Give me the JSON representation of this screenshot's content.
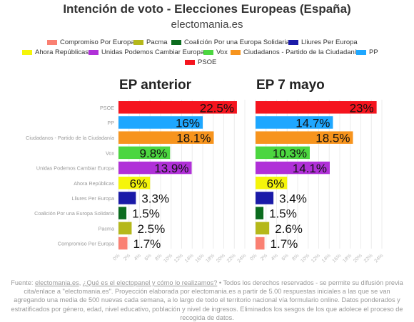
{
  "title": "Intención de voto - Elecciones Europeas (España)",
  "subtitle": "electomania.es",
  "legend": [
    {
      "label": "Compromiso Por Europa",
      "color": "#fa8072"
    },
    {
      "label": "Pacma",
      "color": "#b5b81a"
    },
    {
      "label": "Coalición Por una Europa Solidaria",
      "color": "#0b6b1e"
    },
    {
      "label": "Lliures Per Europa",
      "color": "#1a1aa8"
    },
    {
      "label": "Ahora Repúblicas",
      "color": "#f5f50a"
    },
    {
      "label": "Unidas Podemos Cambiar Europa",
      "color": "#b030d8"
    },
    {
      "label": "Vox",
      "color": "#4cd640"
    },
    {
      "label": "Ciudadanos - Partido de la Ciudadanía",
      "color": "#f7941d"
    },
    {
      "label": "PP",
      "color": "#1ea7ff"
    },
    {
      "label": "PSOE",
      "color": "#f5141e"
    }
  ],
  "chart_data": [
    {
      "type": "bar",
      "orientation": "horizontal",
      "title": "EP anterior",
      "categories": [
        "PSOE",
        "PP",
        "Ciudadanos - Partido de la Ciudadanía",
        "Vox",
        "Unidas Podemos Cambiar Europa",
        "Ahora Repúblicas",
        "Lliures Per Europa",
        "Coalición Por una Europa Solidaria",
        "Pacma",
        "Compromiso Por Europa"
      ],
      "values": [
        22.5,
        16,
        18.1,
        9.8,
        13.9,
        6,
        3.3,
        1.5,
        2.5,
        1.7
      ],
      "value_labels": [
        "22.5%",
        "16%",
        "18.1%",
        "9.8%",
        "13.9%",
        "6%",
        "3.3%",
        "1.5%",
        "2.5%",
        "1.7%"
      ],
      "xlim": [
        0,
        24
      ],
      "ticks": [
        "0%",
        "2%",
        "4%",
        "6%",
        "8%",
        "10%",
        "12%",
        "14%",
        "16%",
        "18%",
        "20%",
        "22%",
        "24%"
      ]
    },
    {
      "type": "bar",
      "orientation": "horizontal",
      "title": "EP 7 mayo",
      "categories": [
        "PSOE",
        "PP",
        "Ciudadanos - Partido de la Ciudadanía",
        "Vox",
        "Unidas Podemos Cambiar Europa",
        "Ahora Repúblicas",
        "Lliures Per Europa",
        "Coalición Por una Europa Solidaria",
        "Pacma",
        "Compromiso Por Europa"
      ],
      "values": [
        23,
        14.7,
        18.5,
        10.3,
        14.1,
        6,
        3.4,
        1.5,
        2.6,
        1.7
      ],
      "value_labels": [
        "23%",
        "14.7%",
        "18.5%",
        "10.3%",
        "14.1%",
        "6%",
        "3.4%",
        "1.5%",
        "2.6%",
        "1.7%"
      ],
      "xlim": [
        0,
        24
      ],
      "ticks": [
        "0%",
        "2%",
        "4%",
        "6%",
        "8%",
        "10%",
        "12%",
        "14%",
        "16%",
        "18%",
        "20%",
        "22%",
        "24%"
      ]
    }
  ],
  "bar_colors": {
    "PSOE": "#f5141e",
    "PP": "#1ea7ff",
    "Ciudadanos - Partido de la Ciudadanía": "#f7941d",
    "Vox": "#4cd640",
    "Unidas Podemos Cambiar Europa": "#b030d8",
    "Ahora Repúblicas": "#f5f50a",
    "Lliures Per Europa": "#1a1aa8",
    "Coalición Por una Europa Solidaria": "#0b6b1e",
    "Pacma": "#b5b81a",
    "Compromiso Por Europa": "#fa8072"
  },
  "footer": {
    "prefix": "Fuente: ",
    "link1": "electomania.es",
    "sep": ", ",
    "link2": "¿Qué es el electopanel y cómo lo realizamos?",
    "text": " • Todos los derechos reservados - se permite su difusión previa cita/enlace a \"electomania.es\". Proyección elaborada por electomania.es a partir de 5.00 respuestas iniciales a las que se van agregando una media de 500 nuevas cada semana, a lo largo de todo el territorio nacional vía formulario online. Datos ponderados y estratificados por género, edad, nivel educativo, población y nivel de ingresos. Eliminados los sesgos de los que adolece el proceso de recogida de datos."
  }
}
